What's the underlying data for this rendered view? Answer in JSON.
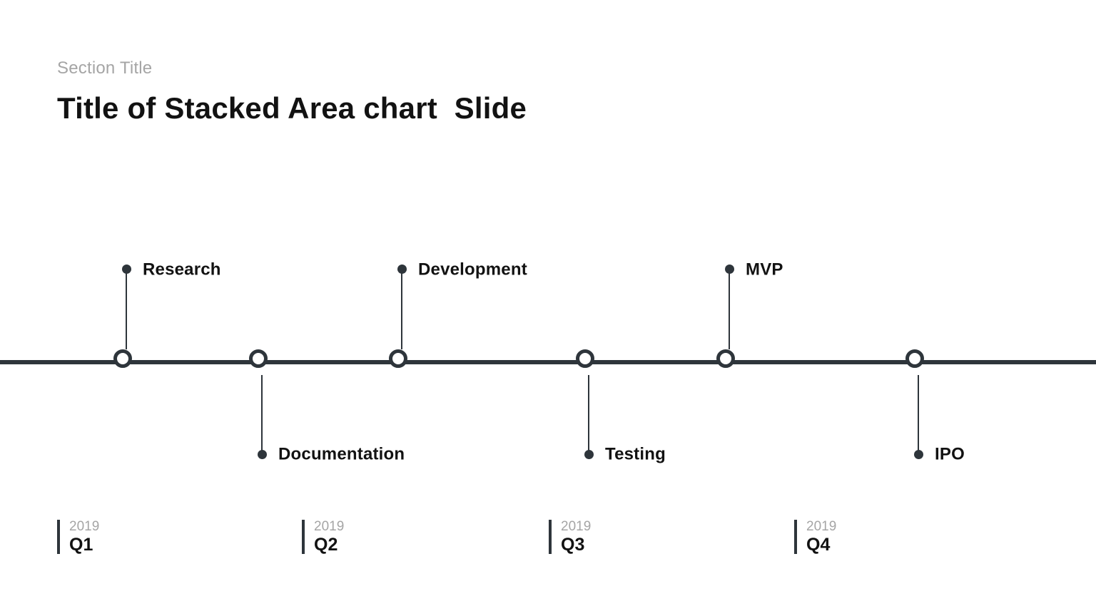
{
  "slide": {
    "section_title": "Section Title",
    "title": "Title of Stacked Area chart  Slide"
  },
  "timeline": {
    "milestones": [
      {
        "label": "Research",
        "side": "above"
      },
      {
        "label": "Documentation",
        "side": "below"
      },
      {
        "label": "Development",
        "side": "above"
      },
      {
        "label": "Testing",
        "side": "below"
      },
      {
        "label": "MVP",
        "side": "above"
      },
      {
        "label": "IPO",
        "side": "below"
      }
    ],
    "quarters": [
      {
        "year": "2019",
        "label": "Q1"
      },
      {
        "year": "2019",
        "label": "Q2"
      },
      {
        "year": "2019",
        "label": "Q3"
      },
      {
        "year": "2019",
        "label": "Q4"
      }
    ],
    "colors": {
      "line": "#2e353b",
      "node_fill": "#ffffff",
      "label_text": "#121212",
      "muted_text": "#a5a5a5"
    }
  }
}
